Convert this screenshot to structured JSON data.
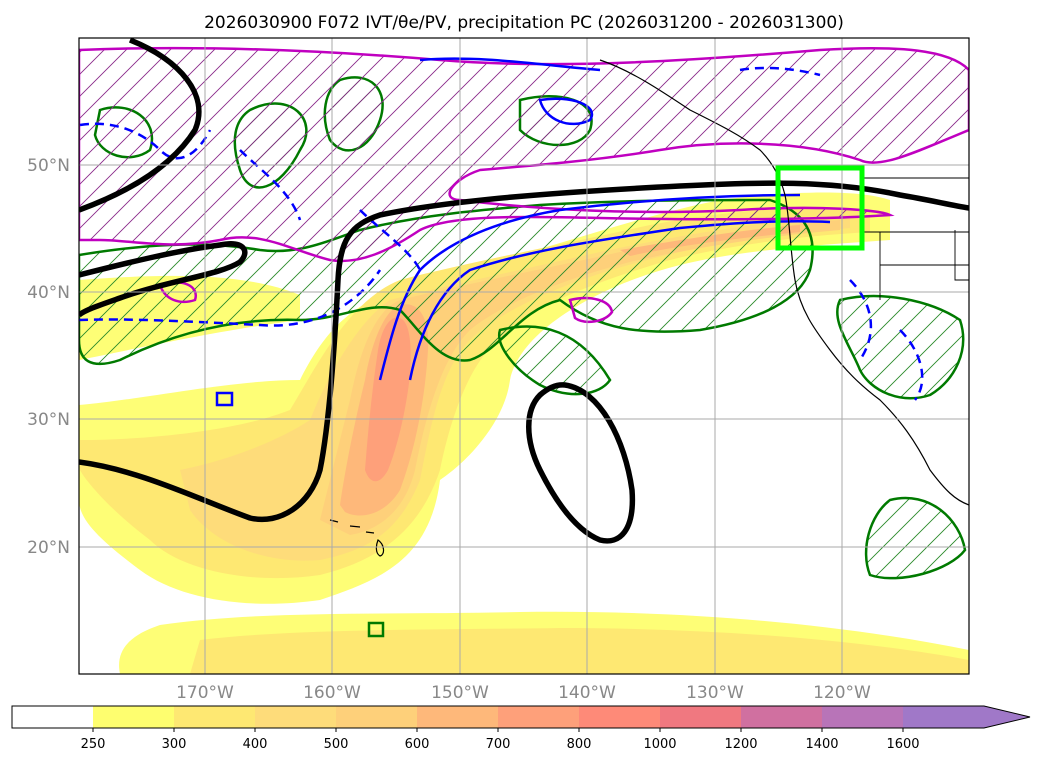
{
  "title": "2026030900 F072 IVT/θe/PV, precipitation PC (2026031200 - 2026031300)",
  "map": {
    "lat_labels": [
      "50°N",
      "40°N",
      "30°N",
      "20°N"
    ],
    "lon_labels": [
      "170°W",
      "160°W",
      "150°W",
      "140°W",
      "130°W",
      "120°W"
    ],
    "lat_range": [
      10,
      60
    ],
    "lon_range": [
      -180,
      -110
    ],
    "highlight_box": {
      "lon": [
        -125,
        -118
      ],
      "lat": [
        43,
        50
      ],
      "color": "#00ff00"
    }
  },
  "colorbar": {
    "ticks": [
      "250",
      "300",
      "400",
      "500",
      "600",
      "700",
      "800",
      "1000",
      "1200",
      "1400",
      "1600"
    ],
    "colors": [
      "#ffffff",
      "#fefe6f",
      "#fee872",
      "#fedc7a",
      "#fed07a",
      "#feb87a",
      "#fea07a",
      "#fe8a78",
      "#f07880",
      "#d070a0",
      "#b874b8",
      "#a078c8"
    ],
    "extend": "max"
  },
  "colors": {
    "pv_contour": "#007a00",
    "theta_e_solid": "#0000ff",
    "theta_e_dashed": "#0000ff",
    "magenta_contour": "#c000c0",
    "thick_contour": "#000000"
  }
}
